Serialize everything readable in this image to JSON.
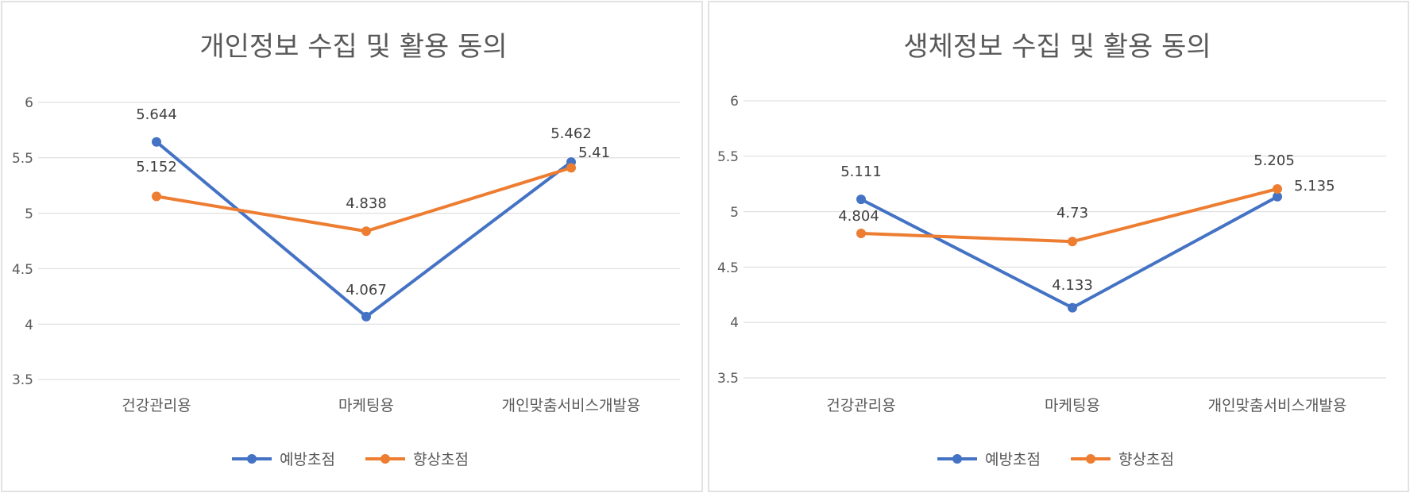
{
  "charts": [
    {
      "title": "개인정보 수집 및 활용 동의",
      "yticks": [
        "6",
        "5.5",
        "5",
        "4.5",
        "4",
        "3.5"
      ],
      "categories": [
        "건강관리용",
        "마케팅용",
        "개인맞춤서비스개발용"
      ],
      "legend": [
        "예방초점",
        "향상초점"
      ]
    },
    {
      "title": "생체정보 수집 및 활용 동의",
      "yticks": [
        "6",
        "5.5",
        "5",
        "4.5",
        "4",
        "3.5"
      ],
      "categories": [
        "건강관리용",
        "마케팅용",
        "개인맞춤서비스개발용"
      ],
      "legend": [
        "예방초점",
        "향상초점"
      ]
    }
  ],
  "chart_data": [
    {
      "type": "line",
      "title": "개인정보 수집 및 활용 동의",
      "categories": [
        "건강관리용",
        "마케팅용",
        "개인맞춤서비스개발용"
      ],
      "series": [
        {
          "name": "예방초점",
          "values": [
            5.644,
            4.067,
            5.462
          ],
          "labels": [
            "5.644",
            "4.067",
            "5.462"
          ],
          "color": "#4472C4"
        },
        {
          "name": "향상초점",
          "values": [
            5.152,
            4.838,
            5.41
          ],
          "labels": [
            "5.152",
            "4.838",
            "5.41"
          ],
          "color": "#ED7D31"
        }
      ],
      "ylim": [
        3.5,
        6
      ],
      "grid": true,
      "legend_position": "bottom"
    },
    {
      "type": "line",
      "title": "생체정보 수집 및 활용 동의",
      "categories": [
        "건강관리용",
        "마케팅용",
        "개인맞춤서비스개발용"
      ],
      "series": [
        {
          "name": "예방초점",
          "values": [
            5.111,
            4.133,
            5.135
          ],
          "labels": [
            "5.111",
            "4.133",
            "5.135"
          ],
          "color": "#4472C4"
        },
        {
          "name": "향상초점",
          "values": [
            4.804,
            4.73,
            5.205
          ],
          "labels": [
            "4.804",
            "4.73",
            "5.205"
          ],
          "color": "#ED7D31"
        }
      ],
      "ylim": [
        3.5,
        6
      ],
      "grid": true,
      "legend_position": "bottom"
    }
  ]
}
